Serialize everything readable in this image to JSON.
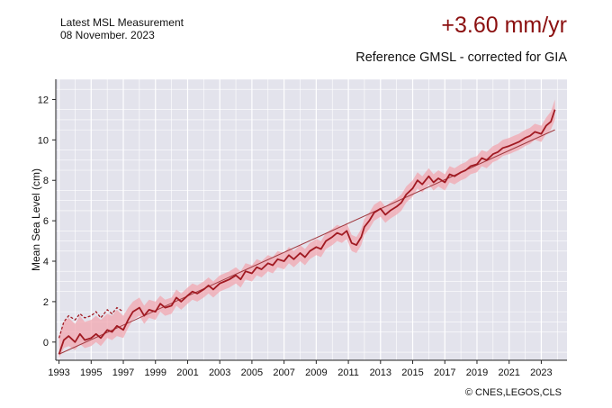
{
  "header": {
    "measurement_label": "Latest MSL Measurement",
    "measurement_date": "08 November. 2023",
    "rate": "+3.60 mm/yr",
    "subtitle": "Reference GMSL - corrected for GIA"
  },
  "credit": "© CNES,LEGOS,CLS",
  "colors": {
    "plot_bg": "#e3e3ec",
    "grid": "#ffffff",
    "series": "#a11a22",
    "band": "#f2a7b0",
    "trend": "#a0383e",
    "rate_text": "#8b1010"
  },
  "chart_data": {
    "type": "line",
    "title": "",
    "ylabel": "Mean Sea Level (cm)",
    "xlim": [
      1992.8,
      2024.6
    ],
    "ylim": [
      -0.9,
      13.0
    ],
    "x_ticks": [
      "1993",
      "1995",
      "1997",
      "1999",
      "2001",
      "2003",
      "2005",
      "2007",
      "2009",
      "2011",
      "2013",
      "2015",
      "2017",
      "2019",
      "2021",
      "2023"
    ],
    "y_ticks": [
      "0",
      "2",
      "4",
      "6",
      "8",
      "10",
      "12"
    ],
    "grid": true,
    "series": [
      {
        "x": [
          1993.0,
          1993.3,
          1993.6,
          1994.0,
          1994.3,
          1994.6,
          1995.0,
          1995.3,
          1995.6,
          1996.0,
          1996.3,
          1996.6,
          1997.0,
          1997.3,
          1997.6,
          1998.0,
          1998.3,
          1998.6,
          1999.0,
          1999.3,
          1999.6,
          2000.0,
          2000.3,
          2000.6,
          2001.0,
          2001.3,
          2001.6,
          2002.0,
          2002.3,
          2002.6,
          2003.0,
          2003.3,
          2003.6,
          2004.0,
          2004.3,
          2004.6,
          2005.0,
          2005.3,
          2005.6,
          2006.0,
          2006.3,
          2006.6,
          2007.0,
          2007.3,
          2007.6,
          2008.0,
          2008.3,
          2008.6,
          2009.0,
          2009.3,
          2009.6,
          2010.0,
          2010.3,
          2010.6,
          2010.9,
          2011.2,
          2011.5,
          2011.8,
          2012.0,
          2012.3,
          2012.6,
          2013.0,
          2013.3,
          2013.6,
          2014.0,
          2014.3,
          2014.6,
          2015.0,
          2015.3,
          2015.6,
          2016.0,
          2016.3,
          2016.6,
          2017.0,
          2017.3,
          2017.6,
          2018.0,
          2018.3,
          2018.6,
          2019.0,
          2019.3,
          2019.6,
          2020.0,
          2020.3,
          2020.6,
          2021.0,
          2021.3,
          2021.6,
          2022.0,
          2022.3,
          2022.6,
          2023.0,
          2023.3,
          2023.6,
          2023.85
        ],
        "values": [
          -0.6,
          0.1,
          0.3,
          0.0,
          0.4,
          0.1,
          0.2,
          0.4,
          0.2,
          0.6,
          0.5,
          0.8,
          0.6,
          1.1,
          1.5,
          1.7,
          1.3,
          1.6,
          1.5,
          1.9,
          1.7,
          1.8,
          2.2,
          2.0,
          2.3,
          2.5,
          2.4,
          2.6,
          2.8,
          2.6,
          2.9,
          3.0,
          3.1,
          3.3,
          3.1,
          3.5,
          3.4,
          3.7,
          3.6,
          3.9,
          3.8,
          4.1,
          4.0,
          4.3,
          4.1,
          4.4,
          4.2,
          4.5,
          4.7,
          4.6,
          5.0,
          5.2,
          5.4,
          5.3,
          5.5,
          4.9,
          4.8,
          5.2,
          5.7,
          6.0,
          6.4,
          6.6,
          6.3,
          6.5,
          6.7,
          6.9,
          7.3,
          7.6,
          8.0,
          7.8,
          8.2,
          7.9,
          8.1,
          7.9,
          8.3,
          8.2,
          8.4,
          8.5,
          8.7,
          8.8,
          9.1,
          9.0,
          9.3,
          9.4,
          9.6,
          9.7,
          9.8,
          9.9,
          10.1,
          10.2,
          10.4,
          10.3,
          10.7,
          10.9,
          11.5
        ],
        "upper": [
          0.3,
          1.0,
          1.2,
          0.9,
          1.3,
          1.0,
          1.1,
          1.3,
          1.1,
          1.4,
          1.3,
          1.6,
          1.3,
          1.7,
          2.0,
          2.2,
          1.8,
          2.1,
          2.0,
          2.3,
          2.1,
          2.2,
          2.6,
          2.4,
          2.7,
          2.9,
          2.8,
          3.0,
          3.2,
          3.0,
          3.3,
          3.4,
          3.5,
          3.7,
          3.5,
          3.9,
          3.8,
          4.1,
          4.0,
          4.3,
          4.2,
          4.5,
          4.4,
          4.7,
          4.5,
          4.8,
          4.6,
          4.9,
          5.1,
          5.0,
          5.4,
          5.6,
          5.8,
          5.7,
          5.9,
          5.3,
          5.2,
          5.6,
          6.1,
          6.4,
          6.8,
          7.0,
          6.7,
          6.9,
          7.1,
          7.3,
          7.7,
          8.0,
          8.4,
          8.2,
          8.6,
          8.3,
          8.5,
          8.3,
          8.7,
          8.6,
          8.8,
          8.9,
          9.1,
          9.2,
          9.5,
          9.4,
          9.7,
          9.8,
          10.0,
          10.1,
          10.2,
          10.3,
          10.5,
          10.6,
          10.8,
          10.7,
          11.1,
          11.4,
          12.0
        ],
        "lower": [
          -0.8,
          -0.3,
          -0.2,
          -0.4,
          -0.1,
          -0.3,
          -0.2,
          0.0,
          -0.2,
          0.2,
          0.1,
          0.3,
          0.2,
          0.7,
          1.1,
          1.3,
          0.9,
          1.2,
          1.1,
          1.5,
          1.3,
          1.4,
          1.8,
          1.6,
          1.9,
          2.1,
          2.0,
          2.2,
          2.4,
          2.2,
          2.5,
          2.6,
          2.7,
          2.9,
          2.7,
          3.1,
          3.0,
          3.3,
          3.2,
          3.5,
          3.4,
          3.7,
          3.6,
          3.9,
          3.7,
          4.0,
          3.8,
          4.1,
          4.3,
          4.2,
          4.6,
          4.8,
          5.0,
          4.9,
          5.1,
          4.5,
          4.4,
          4.8,
          5.3,
          5.6,
          6.0,
          6.2,
          5.9,
          6.1,
          6.3,
          6.5,
          6.9,
          7.2,
          7.6,
          7.4,
          7.8,
          7.5,
          7.7,
          7.5,
          7.9,
          7.8,
          8.0,
          8.1,
          8.3,
          8.4,
          8.7,
          8.6,
          8.9,
          9.0,
          9.2,
          9.3,
          9.4,
          9.5,
          9.7,
          9.8,
          10.0,
          9.9,
          10.3,
          10.5,
          11.0
        ]
      },
      {
        "x": [
          1993.0,
          1993.3,
          1993.6,
          1994.0,
          1994.3,
          1994.6,
          1995.0,
          1995.3,
          1995.6,
          1996.0,
          1996.3,
          1996.6,
          1997.0
        ],
        "values": [
          0.2,
          1.0,
          1.3,
          1.1,
          1.4,
          1.2,
          1.3,
          1.5,
          1.2,
          1.6,
          1.4,
          1.7,
          1.5
        ]
      },
      {
        "x": [
          1993.0,
          2023.85
        ],
        "values": [
          -0.6,
          10.5
        ]
      }
    ]
  }
}
